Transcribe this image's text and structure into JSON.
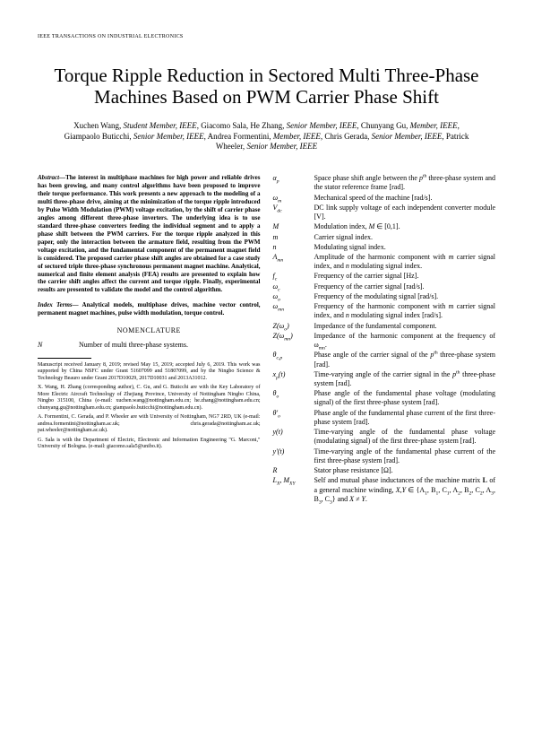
{
  "header": "IEEE TRANSACTIONS ON INDUSTRIAL ELECTRONICS",
  "title": "Torque Ripple Reduction in Sectored Multi Three-Phase Machines Based on PWM Carrier Phase Shift",
  "authors_html": "Xuchen Wang, <i>Student Member, IEEE</i>, Giacomo Sala, He Zhang, <i>Senior Member, IEEE</i>, Chunyang Gu, <i>Member, IEEE</i>, Giampaolo Buticchi, <i>Senior Member, IEEE</i>, Andrea Formentini, <i>Member, IEEE</i>, Chris Gerada, <i>Senior Member, IEEE</i>, Patrick Wheeler, <i>Senior Member, IEEE</i>",
  "abstract_lead": "Abstract—",
  "abstract_body": "The interest in multiphase machines for high power and reliable drives has been growing, and many control algorithms have been proposed to improve their torque performance. This work presents a new approach to the modeling of a multi three-phase drive, aiming at the minimization of the torque ripple introduced by Pulse Width Modulation (PWM) voltage excitation, by the shift of carrier phase angles among different three-phase inverters. The underlying idea is to use standard three-phase converters feeding the individual segment and to apply a phase shift between the PWM carriers. For the torque ripple analyzed in this paper, only the interaction between the armature field, resulting from the PWM voltage excitation, and the fundamental component of the permanent magnet field is considered. The proposed carrier phase shift angles are obtained for a case study of sectored triple three-phase synchronous permanent magnet machine. Analytical, numerical and finite element analysis (FEA) results are presented to explain how the carrier shift angles affect the current and torque ripple. Finally, experimental results are presented to validate the model and the control algorithm.",
  "index_lead": "Index Terms—",
  "index_body": " Analytical models, multiphase drives, machine vector control, permanent magnet machines, pulse width modulation, torque control.",
  "nomenclature_heading": "NOMENCLATURE",
  "nom_left": [
    {
      "sym": "N",
      "def": "Number of multi three-phase systems."
    }
  ],
  "nom_right": [
    {
      "sym": "α<sub>p</sub>",
      "def": "Space phase shift angle between the <i>p</i><sup>th</sup> three-phase system and the stator reference frame [rad]."
    },
    {
      "sym": "ω<sub>m</sub>",
      "def": "Mechanical speed of the machine [rad/s]."
    },
    {
      "sym": "V<sub>dc</sub>",
      "def": "DC link supply voltage of each independent converter module [V]."
    },
    {
      "sym": "M",
      "def": "Modulation index, <i>M</i> ∈ [0,1]."
    },
    {
      "sym": "m",
      "def": "Carrier signal index."
    },
    {
      "sym": "n",
      "def": "Modulating signal index."
    },
    {
      "sym": "A<sub>mn</sub>",
      "def": "Amplitude of the harmonic component with <i>m</i> carrier signal index, and <i>n</i> modulating signal index."
    },
    {
      "sym": "f<sub>c</sub>",
      "def": "Frequency of the carrier signal [Hz]."
    },
    {
      "sym": "ω<sub>c</sub>",
      "def": "Frequency of the carrier signal [rad/s]."
    },
    {
      "sym": "ω<sub>o</sub>",
      "def": "Frequency of the modulating signal [rad/s]."
    },
    {
      "sym": "ω<sub>mn</sub>",
      "def": "Frequency of the harmonic component with <i>m</i> carrier signal index, and <i>n</i> modulating signal index [rad/s]."
    },
    {
      "sym": "Z(ω<sub>o</sub>)",
      "def": "Impedance of the fundamental component."
    },
    {
      "sym": "Z(ω<sub>mn</sub>)",
      "def": "Impedance of the harmonic component at the frequency of ω<sub>mn</sub>."
    },
    {
      "sym": "θ<sub>c,p</sub>",
      "def": "Phase angle of the carrier signal of the <i>p</i><sup>th</sup> three-phase system [rad]."
    },
    {
      "sym": "x<sub>p</sub>(t)",
      "def": "Time-varying angle of the carrier signal in the <i>p</i><sup>th</sup> three-phase system [rad]."
    },
    {
      "sym": "θ<sub>o</sub>",
      "def": "Phase angle of the fundamental phase voltage (modulating signal) of the first three-phase system [rad]."
    },
    {
      "sym": "θ'<sub>o</sub>",
      "def": "Phase angle of the fundamental phase current of the first three-phase system [rad]."
    },
    {
      "sym": "y(t)",
      "def": "Time-varying angle of the fundamental phase voltage (modulating signal) of the first three-phase system [rad]."
    },
    {
      "sym": "y'(t)",
      "def": "Time-varying angle of the fundamental phase current of the first three-phase system [rad]."
    },
    {
      "sym": "R",
      "def": "Stator phase resistance [Ω]."
    },
    {
      "sym": "L<sub>X</sub>, M<sub>XY</sub>",
      "def": "Self and mutual phase inductances of the machine matrix <b>L</b> of a general machine winding, <i>X</i>,<i>Y</i> ∈ {A<sub>1</sub>, B<sub>1</sub>, C<sub>1</sub>, A<sub>2</sub>, B<sub>2</sub>, C<sub>2</sub>, A<sub>3</sub>, B<sub>3</sub>, C<sub>3</sub>} and <i>X</i> ≠ <i>Y</i>."
    }
  ],
  "footnotes": [
    "Manuscript received January 8, 2019; revised May 15, 2019; accepted July 6, 2019. This work was supported by China NSFC under Grant 51607099 and 51807099, and by the Ningbo Science & Technology Beauro under Grant 2017D10029, 2017D10031 and 2013A31012.",
    "X. Wang, H. Zhang (corresponding author), C. Gu, and G. Buticchi are with the Key Laboratory of More Electric Aircraft Technology of Zhejiang Province, University of Nottingham Ningbo China, Ningbo 315100, China (e-mail: xuchen.wang@nottingham.edu.cn; he.zhang@nottingham.edu.cn; chunyang.gu@nottingham.edu.cn; giampaolo.buticchi@nottingham.edu.cn).",
    "A. Formentini, C. Gerada, and P. Wheeler are with University of Nottingham, NG7 2RD, UK (e-mail: andrea.formentini@nottingham.ac.uk; chris.gerada@nottingham.ac.uk; pat.wheeler@nottingham.ac.uk).",
    "G. Sala is with the Department of Electric, Electronic and Information Engineering \"G. Marconi,\" University of Bologna. (e-mail: giacomo.sala5@unibo.it)."
  ]
}
